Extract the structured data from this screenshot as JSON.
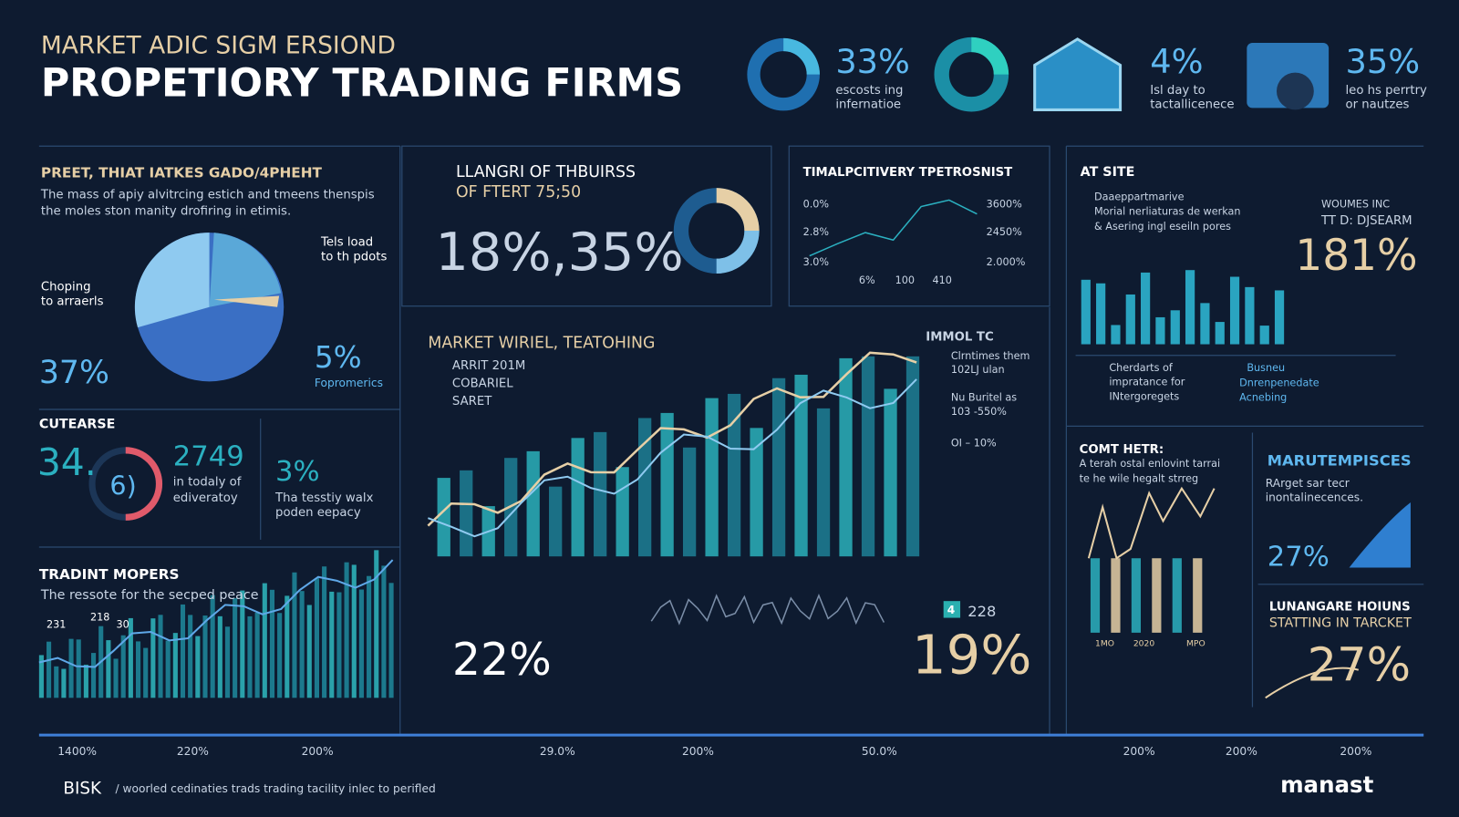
{
  "header": {
    "subtitle": "MARKET ADIC SIGM ERSIOND",
    "title": "PROPETIORY TRADING FIRMS"
  },
  "kpis": [
    {
      "value": "33%",
      "lines": [
        "escosts ing",
        "infernatioe"
      ]
    },
    {
      "value": "4%",
      "lines": [
        "Isl day to",
        "tactallicenece"
      ]
    },
    {
      "value": "35%",
      "lines": [
        "leo hs perrtry",
        "or nautzes"
      ]
    }
  ],
  "left": {
    "title": "PREET, THIAT IATKES GADO/4PHEHT",
    "text": [
      "The mass of apiy alvitrcing estich and tmeens thenspis",
      "the moles ston manity drofiring in etimis."
    ],
    "callouts": [
      "Tels load",
      "to th pdots",
      "Choping",
      "to arraerls"
    ],
    "stat_left": "37%",
    "stat_right": "5%",
    "stat_right_label": "Fopromerics"
  },
  "course": {
    "title": "CUTEARSE",
    "gauge_value": "34.",
    "gauge_inner": "6)",
    "stat1": "2749",
    "stat1_lines": [
      "in todaly of",
      "ediveratoy"
    ],
    "stat2": "3%",
    "stat2_lines": [
      "Tha tesstiy walx",
      "poden eepacy"
    ]
  },
  "trading": {
    "title": "TRADINT MOPERS",
    "text": "The ressote for the secped peace",
    "labels": [
      "231",
      "218",
      "30"
    ]
  },
  "center_top": {
    "title_lines": [
      "LLANGRI OF THBUIRSS",
      "OF FTERT 75;50"
    ],
    "value": "18%,35%"
  },
  "line_panel": {
    "title": "TIMALPCITIVERY TPETROSNIST",
    "left_axis": [
      "0.0%",
      "2.8%",
      "3.0%"
    ],
    "right_axis": [
      "3600%",
      "2450%",
      "2.000%"
    ],
    "bottom_axis": [
      "6%",
      "100",
      "410"
    ]
  },
  "main": {
    "title": "MARKET WIRIEL, TEATOHING",
    "legend": [
      "ARRIT 201M",
      "COBARIEL",
      "SARET"
    ],
    "side_title": "IMMOL TC",
    "side_lines": [
      "Clrntimes them",
      "102LJ ulan",
      "Nu Buritel as",
      "103 -550%",
      "OI – 10%"
    ],
    "value_left": "22%",
    "badge": "4",
    "badge_value": "228",
    "value_right": "19%"
  },
  "at_site": {
    "title": "AT SITE",
    "bullets": [
      "Daaeppartmarive",
      "Morial nerliaturas de werkan",
      "& Asering ingl eseiln pores"
    ],
    "side_lines": [
      "WOUMES INC",
      "TT D: DJSEARM"
    ],
    "value": "181%",
    "notes_left": [
      "Cherdarts of",
      "impratance for",
      "INtergoregets"
    ],
    "notes_right": [
      "Busneu",
      "Dnrenpenedate",
      "Acnebing"
    ]
  },
  "comt": {
    "title": "COMT HETR:",
    "text": [
      "A terah ostal enlovint tarrai",
      "te he wile hegalt strreg"
    ],
    "axis": [
      "1MO",
      "2020",
      "MPO"
    ]
  },
  "maru": {
    "title": "MARUTEMPISCES",
    "text": [
      "RArget sar tecr",
      "inontalinecences."
    ],
    "value": "27%"
  },
  "lunan": {
    "title_lines": [
      "LUNANGARE HOIUNS",
      "STATTING IN TARCKET"
    ],
    "value": "27%"
  },
  "bottom_axis": [
    "1400%",
    "220%",
    "200%",
    "29.0%",
    "200%",
    "50.0%",
    "200%",
    "200%",
    "200%"
  ],
  "footer": {
    "brand": "BISK",
    "text": "/ woorled cedinaties trads trading tacility inlec to perifled",
    "logo": "manast"
  }
}
